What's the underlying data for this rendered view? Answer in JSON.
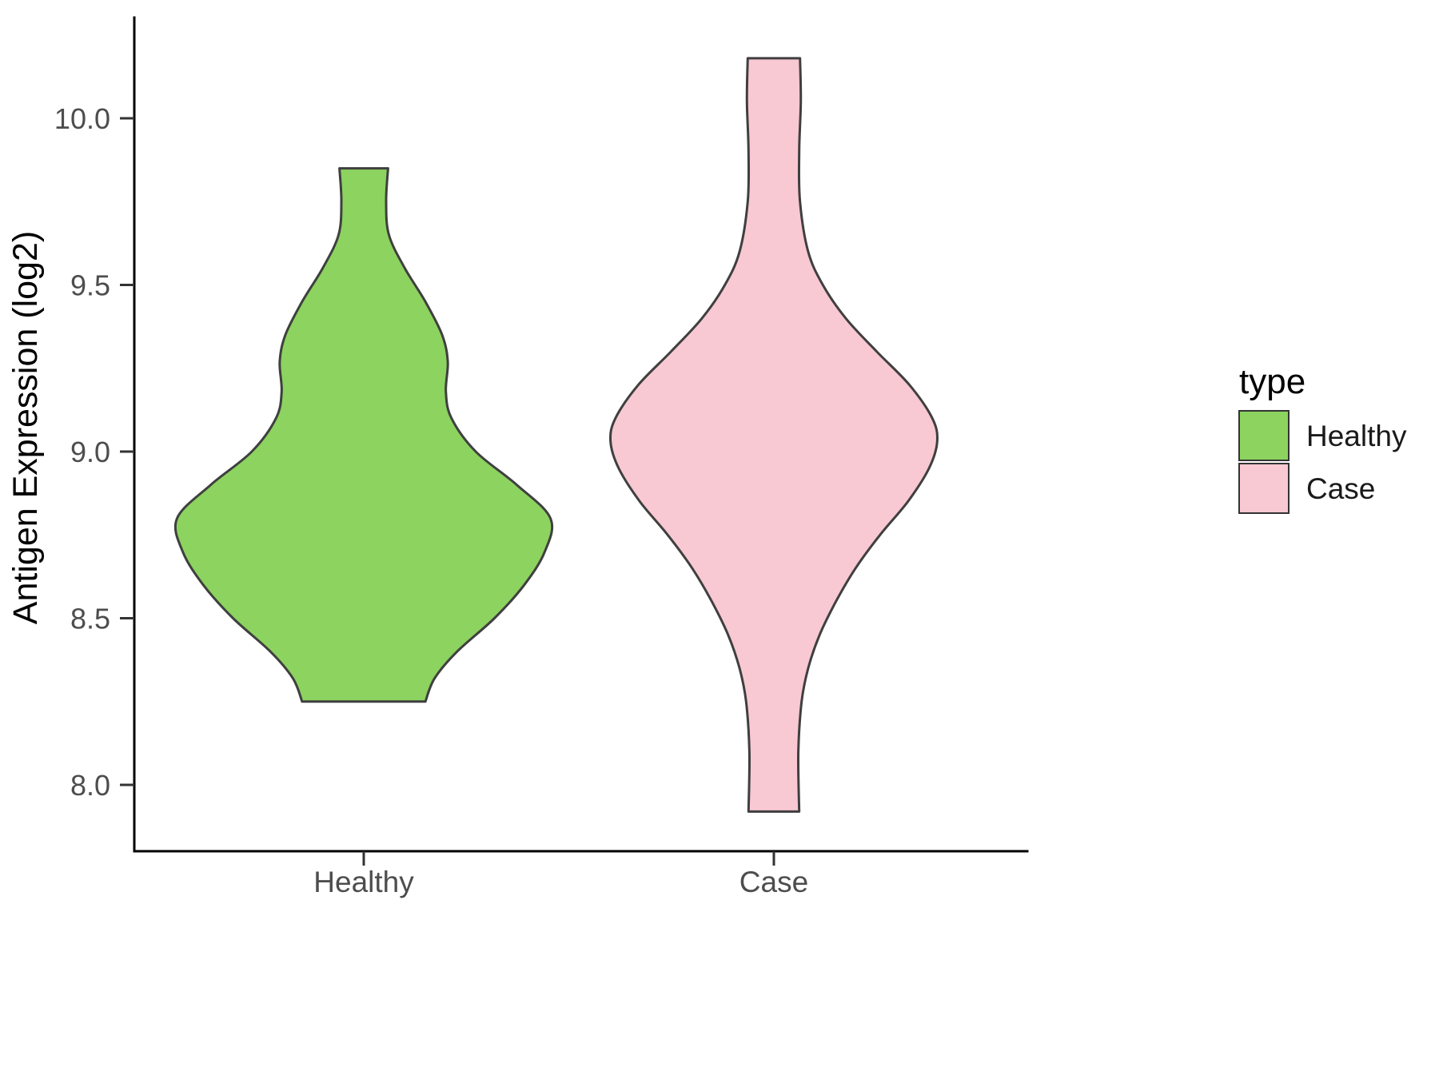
{
  "chart_data": {
    "type": "violin",
    "title": "",
    "xlabel": "",
    "ylabel": "Antigen Expression (log2)",
    "categories": [
      "Healthy",
      "Case"
    ],
    "ylim": [
      7.8,
      10.3
    ],
    "grid": false,
    "y_ticks": [
      {
        "value": 10.0,
        "label": "10.0"
      },
      {
        "value": 9.5,
        "label": "9.5"
      },
      {
        "value": 9.0,
        "label": "9.0"
      },
      {
        "value": 8.5,
        "label": "8.5"
      },
      {
        "value": 8.0,
        "label": "8.0"
      }
    ],
    "legend": {
      "title": "type",
      "position": "right",
      "entries": [
        {
          "label": "Healthy",
          "color": "#8CD35F"
        },
        {
          "label": "Case",
          "color": "#F8C8D3"
        }
      ]
    },
    "colors": {
      "outline": "#3F3F3F",
      "axis": "#000000",
      "tick_text": "#4D4D4D"
    },
    "series": [
      {
        "name": "Healthy",
        "color": "#8CD35F",
        "max_halfwidth_units": 0.56,
        "y_range": [
          8.25,
          9.85
        ],
        "profile": [
          {
            "y": 9.85,
            "w": 0.13
          },
          {
            "y": 9.75,
            "w": 0.12
          },
          {
            "y": 9.65,
            "w": 0.135
          },
          {
            "y": 9.55,
            "w": 0.22
          },
          {
            "y": 9.45,
            "w": 0.33
          },
          {
            "y": 9.35,
            "w": 0.42
          },
          {
            "y": 9.27,
            "w": 0.45
          },
          {
            "y": 9.18,
            "w": 0.44
          },
          {
            "y": 9.1,
            "w": 0.47
          },
          {
            "y": 9.0,
            "w": 0.6
          },
          {
            "y": 8.9,
            "w": 0.82
          },
          {
            "y": 8.8,
            "w": 1.0
          },
          {
            "y": 8.7,
            "w": 0.97
          },
          {
            "y": 8.6,
            "w": 0.86
          },
          {
            "y": 8.5,
            "w": 0.7
          },
          {
            "y": 8.4,
            "w": 0.5
          },
          {
            "y": 8.32,
            "w": 0.38
          },
          {
            "y": 8.25,
            "w": 0.33
          }
        ]
      },
      {
        "name": "Case",
        "color": "#F8C8D3",
        "max_halfwidth_units": 0.49,
        "y_range": [
          7.92,
          10.18
        ],
        "profile": [
          {
            "y": 10.18,
            "w": 0.16
          },
          {
            "y": 10.05,
            "w": 0.165
          },
          {
            "y": 9.9,
            "w": 0.155
          },
          {
            "y": 9.75,
            "w": 0.16
          },
          {
            "y": 9.6,
            "w": 0.21
          },
          {
            "y": 9.5,
            "w": 0.3
          },
          {
            "y": 9.4,
            "w": 0.44
          },
          {
            "y": 9.3,
            "w": 0.63
          },
          {
            "y": 9.2,
            "w": 0.83
          },
          {
            "y": 9.1,
            "w": 0.97
          },
          {
            "y": 9.03,
            "w": 1.0
          },
          {
            "y": 8.95,
            "w": 0.95
          },
          {
            "y": 8.85,
            "w": 0.82
          },
          {
            "y": 8.75,
            "w": 0.65
          },
          {
            "y": 8.65,
            "w": 0.5
          },
          {
            "y": 8.55,
            "w": 0.38
          },
          {
            "y": 8.45,
            "w": 0.28
          },
          {
            "y": 8.35,
            "w": 0.21
          },
          {
            "y": 8.25,
            "w": 0.17
          },
          {
            "y": 8.1,
            "w": 0.15
          },
          {
            "y": 7.92,
            "w": 0.155
          }
        ]
      }
    ]
  }
}
